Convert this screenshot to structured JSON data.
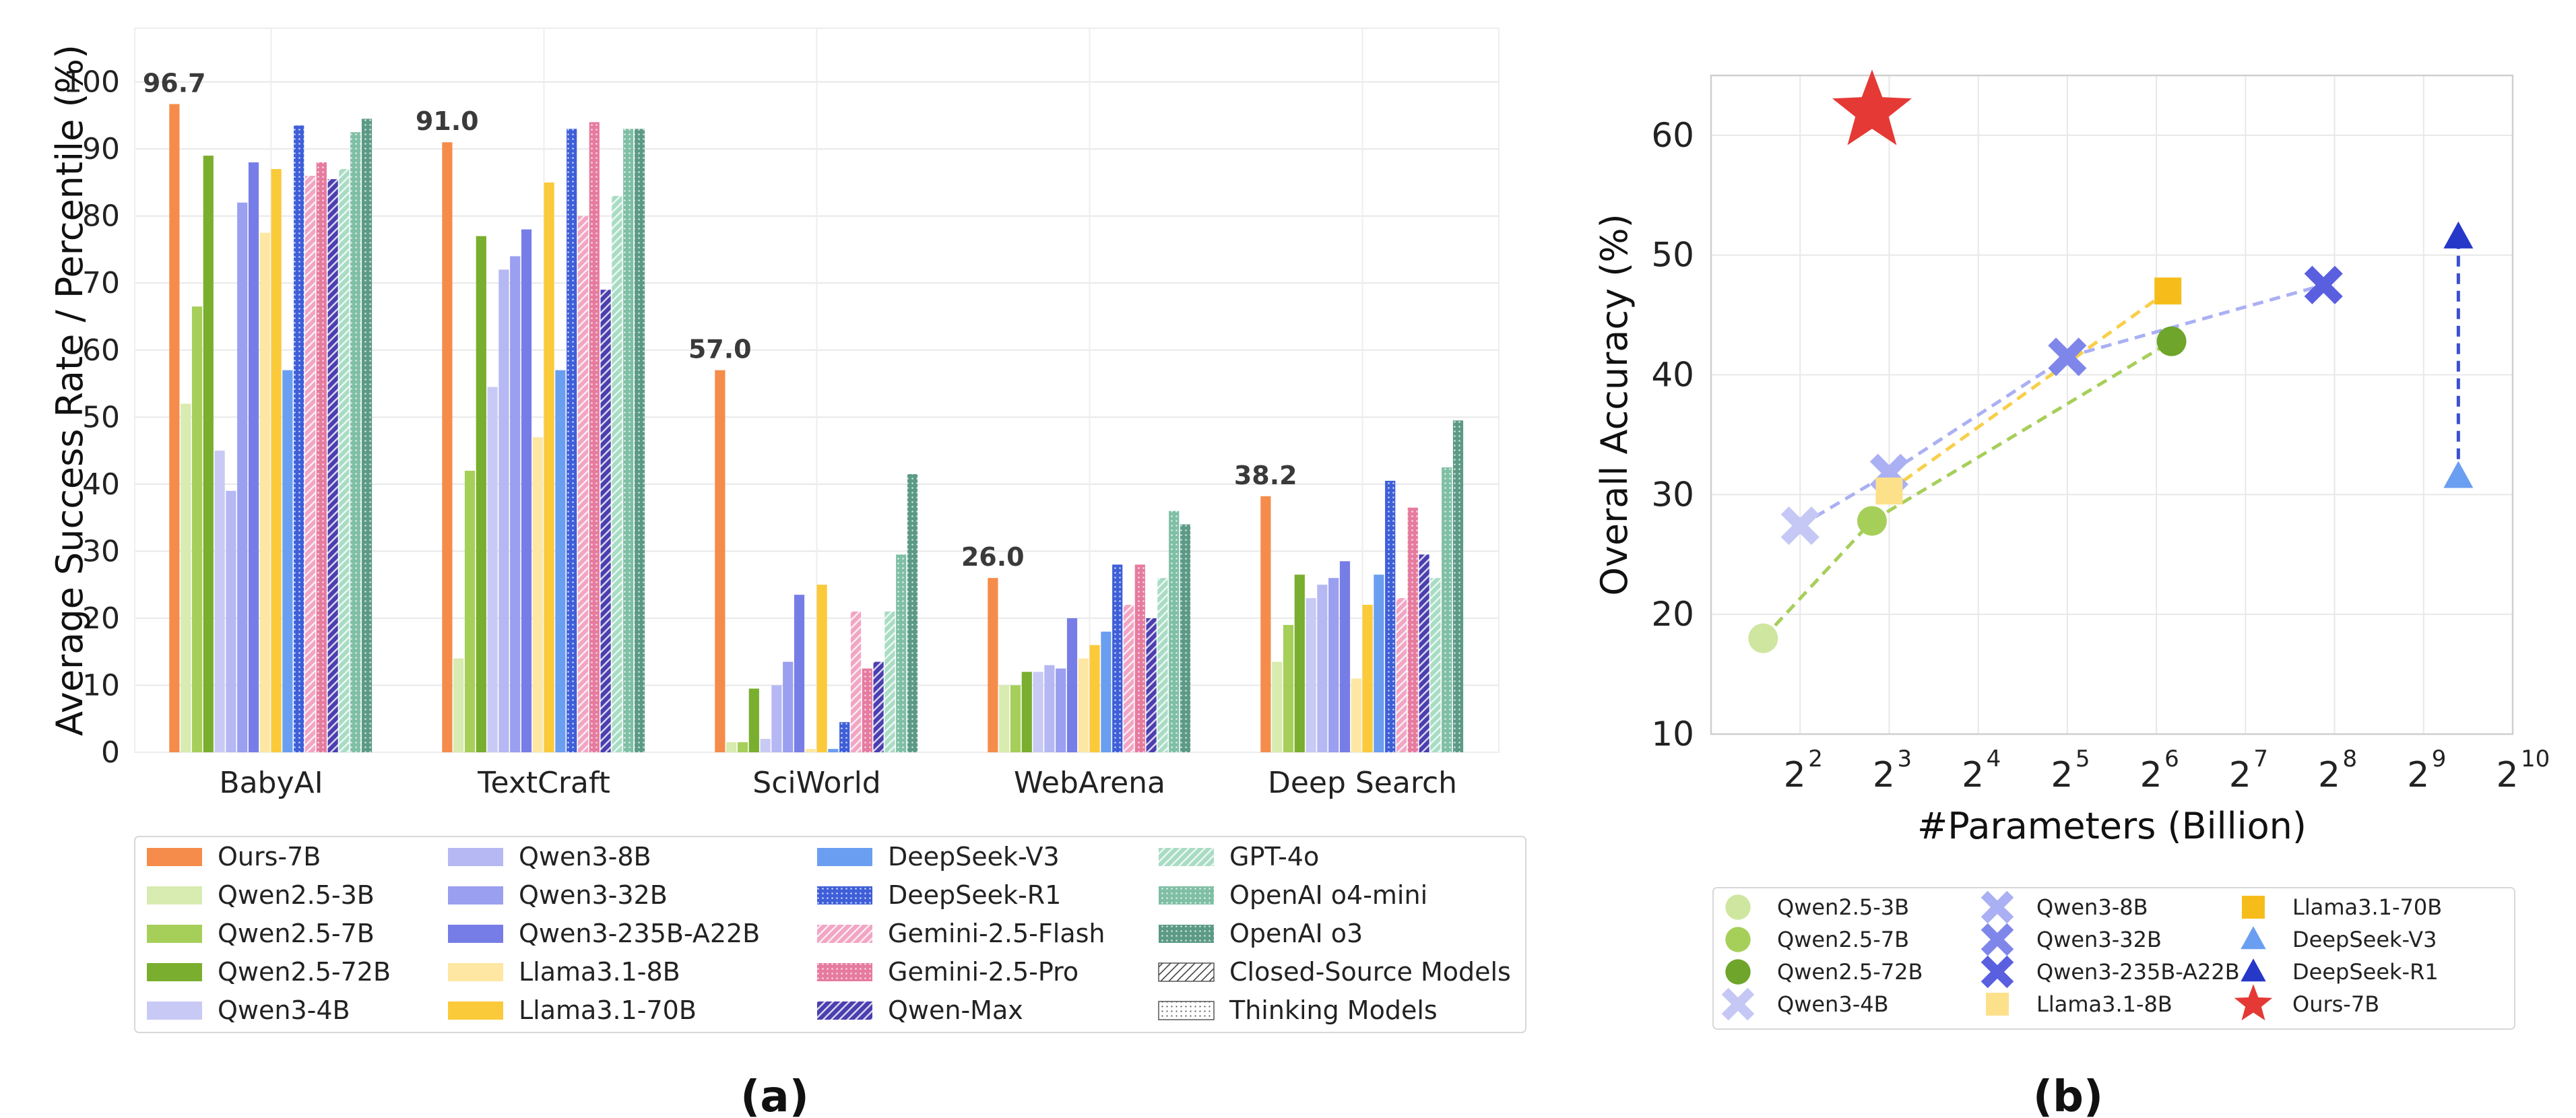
{
  "panels": {
    "a": "(a)",
    "b": "(b)"
  },
  "chart_data": [
    {
      "type": "bar",
      "ylabel": "Average Success Rate / Percentile (%)",
      "ylim": [
        0,
        108
      ],
      "yticks": [
        0,
        10,
        20,
        30,
        40,
        50,
        60,
        70,
        80,
        90,
        100
      ],
      "grid": true,
      "legend_position": "bottom",
      "categories": [
        "BabyAI",
        "TextCraft",
        "SciWorld",
        "WebArena",
        "Deep Search"
      ],
      "series": [
        {
          "name": "Ours-7B",
          "color": "#f58c4b",
          "pattern": "solid",
          "values": [
            96.7,
            91.0,
            57.0,
            26.0,
            38.2
          ]
        },
        {
          "name": "Qwen2.5-3B",
          "color": "#d8ebb0",
          "pattern": "solid",
          "values": [
            52,
            14,
            1.5,
            10,
            13.5
          ]
        },
        {
          "name": "Qwen2.5-7B",
          "color": "#a6cf5a",
          "pattern": "solid",
          "values": [
            66.5,
            42,
            1.5,
            10,
            19
          ]
        },
        {
          "name": "Qwen2.5-72B",
          "color": "#7aae2e",
          "pattern": "solid",
          "values": [
            89,
            77,
            9.5,
            12,
            26.5
          ]
        },
        {
          "name": "Qwen3-4B",
          "color": "#c8caf5",
          "pattern": "solid",
          "values": [
            45,
            54.5,
            2,
            12,
            23
          ]
        },
        {
          "name": "Qwen3-8B",
          "color": "#b5b8f3",
          "pattern": "solid",
          "values": [
            39,
            72,
            10,
            13,
            25
          ]
        },
        {
          "name": "Qwen3-32B",
          "color": "#9a9ff0",
          "pattern": "solid",
          "values": [
            82,
            74,
            13.5,
            12.5,
            26
          ]
        },
        {
          "name": "Qwen3-235B-A22B",
          "color": "#777de6",
          "pattern": "solid",
          "values": [
            88,
            78,
            23.5,
            20,
            28.5
          ]
        },
        {
          "name": "Llama3.1-8B",
          "color": "#fde7a2",
          "pattern": "solid",
          "values": [
            77.5,
            47,
            0.5,
            14,
            11
          ]
        },
        {
          "name": "Llama3.1-70B",
          "color": "#fbca3a",
          "pattern": "solid",
          "values": [
            87,
            85,
            25,
            16,
            22
          ]
        },
        {
          "name": "DeepSeek-V3",
          "color": "#6a9ef0",
          "pattern": "solid",
          "values": [
            57,
            57,
            0.5,
            18,
            26.5
          ]
        },
        {
          "name": "DeepSeek-R1",
          "color": "#3e5fd8",
          "pattern": "dots",
          "values": [
            93.5,
            93,
            4.5,
            28,
            40.5
          ]
        },
        {
          "name": "Gemini-2.5-Flash",
          "color": "#f1a6c3",
          "pattern": "hatch",
          "values": [
            86,
            80,
            21,
            22,
            23
          ]
        },
        {
          "name": "Gemini-2.5-Pro",
          "color": "#e67b9f",
          "pattern": "dots",
          "values": [
            88,
            94,
            12.5,
            28,
            36.5
          ]
        },
        {
          "name": "Qwen-Max",
          "color": "#4b3fb0",
          "pattern": "hatch",
          "values": [
            85.5,
            69,
            13.5,
            20,
            29.5
          ]
        },
        {
          "name": "GPT-4o",
          "color": "#a8dcc4",
          "pattern": "hatch",
          "values": [
            87,
            83,
            21,
            26,
            26
          ]
        },
        {
          "name": "OpenAI o4-mini",
          "color": "#7fbfa5",
          "pattern": "dots",
          "values": [
            92.5,
            93,
            29.5,
            36,
            42.5
          ]
        },
        {
          "name": "OpenAI o3",
          "color": "#5c9a86",
          "pattern": "dots",
          "values": [
            94.5,
            93,
            41.5,
            34,
            49.5
          ]
        }
      ],
      "data_labels": [
        "96.7",
        "91.0",
        "57.0",
        "26.0",
        "38.2"
      ],
      "extra_legend": [
        {
          "name": "Closed-Source Models",
          "pattern": "hatch"
        },
        {
          "name": "Thinking Models",
          "pattern": "dots"
        }
      ]
    },
    {
      "type": "scatter",
      "xlabel": "#Parameters (Billion)",
      "ylabel": "Overall Accuracy (%)",
      "x_scale": "log2",
      "xlim": [
        2,
        1024
      ],
      "ylim": [
        10,
        65
      ],
      "xticks": [
        {
          "value": 4,
          "base": "2",
          "exp": "2"
        },
        {
          "value": 8,
          "base": "2",
          "exp": "3"
        },
        {
          "value": 16,
          "base": "2",
          "exp": "4"
        },
        {
          "value": 32,
          "base": "2",
          "exp": "5"
        },
        {
          "value": 64,
          "base": "2",
          "exp": "6"
        },
        {
          "value": 128,
          "base": "2",
          "exp": "7"
        },
        {
          "value": 256,
          "base": "2",
          "exp": "8"
        },
        {
          "value": 512,
          "base": "2",
          "exp": "9"
        },
        {
          "value": 1024,
          "base": "2",
          "exp": "10"
        }
      ],
      "yticks": [
        10,
        20,
        30,
        40,
        50,
        60
      ],
      "grid": true,
      "legend_position": "bottom",
      "points": [
        {
          "name": "Qwen2.5-3B",
          "x": 3,
          "y": 18,
          "marker": "circle",
          "color": "#cfe6a0"
        },
        {
          "name": "Qwen2.5-7B",
          "x": 7,
          "y": 27.8,
          "marker": "circle",
          "color": "#a6cf5a"
        },
        {
          "name": "Qwen2.5-72B",
          "x": 72,
          "y": 42.8,
          "marker": "circle",
          "color": "#6ea52a"
        },
        {
          "name": "Qwen3-4B",
          "x": 4,
          "y": 27.4,
          "marker": "x",
          "color": "#c5c8f5"
        },
        {
          "name": "Qwen3-8B",
          "x": 8,
          "y": 31.8,
          "marker": "x",
          "color": "#aab0f3"
        },
        {
          "name": "Qwen3-32B",
          "x": 32,
          "y": 41.5,
          "marker": "x",
          "color": "#7f86ea"
        },
        {
          "name": "Qwen3-235B-A22B",
          "x": 235,
          "y": 47.5,
          "marker": "x",
          "color": "#5a5fe0"
        },
        {
          "name": "Llama3.1-8B",
          "x": 8,
          "y": 30.3,
          "marker": "square",
          "color": "#fde08a"
        },
        {
          "name": "Llama3.1-70B",
          "x": 70,
          "y": 47,
          "marker": "square",
          "color": "#f6bd1a"
        },
        {
          "name": "DeepSeek-V3",
          "x": 671,
          "y": 31.5,
          "marker": "triangle",
          "color": "#6a9ef0"
        },
        {
          "name": "DeepSeek-R1",
          "x": 671,
          "y": 51.5,
          "marker": "triangle",
          "color": "#2638c8"
        },
        {
          "name": "Ours-7B",
          "x": 7,
          "y": 62,
          "marker": "star",
          "color": "#e53935"
        }
      ],
      "connections": [
        {
          "from": "Qwen2.5-3B",
          "to": "Qwen2.5-7B",
          "color": "#a6cf5a"
        },
        {
          "from": "Qwen2.5-7B",
          "to": "Qwen2.5-72B",
          "color": "#a6cf5a"
        },
        {
          "from": "Qwen3-4B",
          "to": "Qwen3-8B",
          "color": "#aab0f3"
        },
        {
          "from": "Qwen3-8B",
          "to": "Qwen3-32B",
          "color": "#aab0f3"
        },
        {
          "from": "Qwen3-32B",
          "to": "Qwen3-235B-A22B",
          "color": "#aab0f3"
        },
        {
          "from": "Llama3.1-8B",
          "to": "Llama3.1-70B",
          "color": "#f8cf4a"
        },
        {
          "from": "DeepSeek-V3",
          "to": "DeepSeek-R1",
          "color": "#3a4fd0"
        }
      ]
    }
  ]
}
